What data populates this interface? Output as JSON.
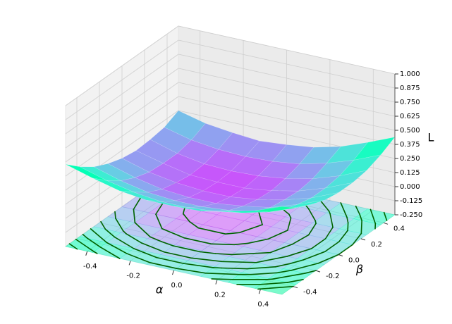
{
  "chart_data": {
    "type": "surface3d",
    "xlabel": "α",
    "ylabel": "β",
    "zlabel": "L",
    "x": [
      -0.5,
      -0.375,
      -0.25,
      -0.125,
      0,
      0.125,
      0.25,
      0.375,
      0.5
    ],
    "y": [
      -0.5,
      -0.375,
      -0.25,
      -0.125,
      0,
      0.125,
      0.25,
      0.375,
      0.5
    ],
    "z": [
      [
        0.48,
        0.41,
        0.35,
        0.32,
        0.32,
        0.33,
        0.38,
        0.44,
        0.53
      ],
      [
        0.37,
        0.3,
        0.25,
        0.22,
        0.22,
        0.24,
        0.28,
        0.34,
        0.43
      ],
      [
        0.28,
        0.21,
        0.16,
        0.14,
        0.14,
        0.16,
        0.2,
        0.27,
        0.37
      ],
      [
        0.22,
        0.15,
        0.1,
        0.08,
        0.08,
        0.11,
        0.15,
        0.23,
        0.32
      ],
      [
        0.18,
        0.11,
        0.07,
        0.05,
        0.05,
        0.08,
        0.13,
        0.2,
        0.3
      ],
      [
        0.16,
        0.1,
        0.05,
        0.04,
        0.04,
        0.07,
        0.12,
        0.2,
        0.3
      ],
      [
        0.17,
        0.1,
        0.06,
        0.05,
        0.06,
        0.09,
        0.14,
        0.22,
        0.32
      ],
      [
        0.19,
        0.13,
        0.1,
        0.09,
        0.1,
        0.13,
        0.19,
        0.27,
        0.37
      ],
      [
        0.25,
        0.19,
        0.16,
        0.14,
        0.16,
        0.19,
        0.25,
        0.34,
        0.44
      ]
    ],
    "xlim": [
      -0.5,
      0.5
    ],
    "ylim": [
      -0.5,
      0.5
    ],
    "zlim": [
      -0.25,
      1.0
    ],
    "xticks": [
      -0.4,
      -0.2,
      {
        "value": 0,
        "label": "0.0"
      },
      0.2,
      0.4
    ],
    "yticks": [
      -0.4,
      -0.2,
      {
        "value": 0,
        "label": "0.0"
      },
      0.2,
      0.4
    ],
    "zticks": [
      {
        "value": -0.25,
        "label": "-0.250"
      },
      {
        "value": -0.125,
        "label": "-0.125"
      },
      {
        "value": 0,
        "label": "0.000"
      },
      {
        "value": 0.125,
        "label": "0.125"
      },
      {
        "value": 0.25,
        "label": "0.250"
      },
      {
        "value": 0.375,
        "label": "0.375"
      },
      {
        "value": 0.5,
        "label": "0.500"
      },
      {
        "value": 0.625,
        "label": "0.625"
      },
      {
        "value": 0.75,
        "label": "0.750"
      },
      {
        "value": 0.875,
        "label": "0.875"
      },
      {
        "value": 1.0,
        "label": "1.000"
      }
    ],
    "colormap": "rainbow",
    "contour_levels": [
      0.06,
      0.1,
      0.15,
      0.2,
      0.25,
      0.3,
      0.35,
      0.4,
      0.45
    ],
    "contour_color": "#006400",
    "grid": true
  }
}
